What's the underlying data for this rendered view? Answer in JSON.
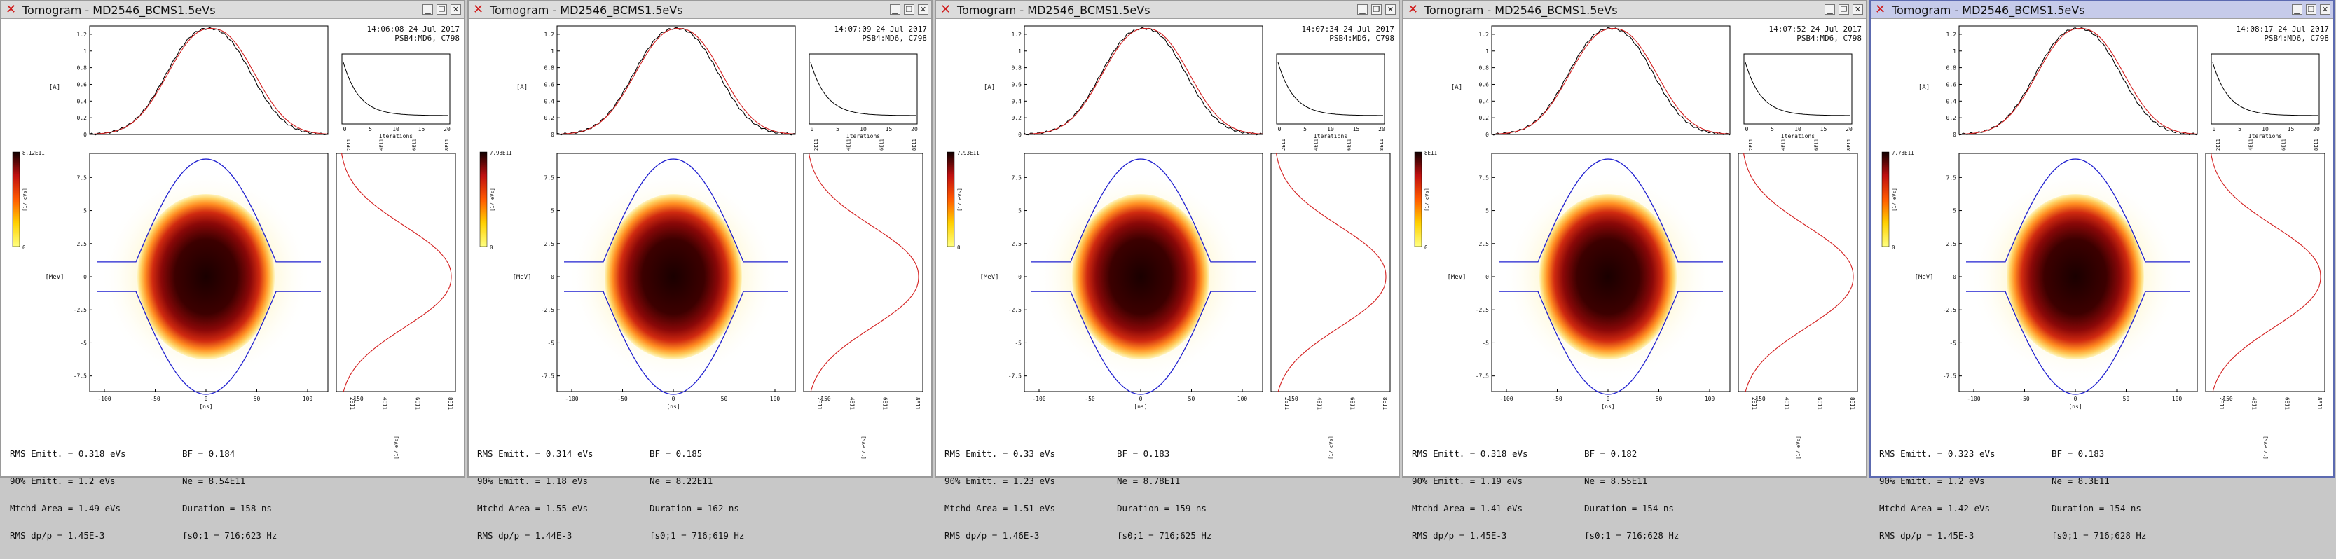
{
  "colors": {
    "measured": "#000000",
    "reconstructed": "#d42020",
    "separatrix": "#2020d0",
    "convergence": "#000000"
  },
  "icons": {
    "close_left": "red-x-close-icon",
    "minimize": "minimize-icon",
    "restore": "restore-icon",
    "close_right": "close-icon"
  },
  "axis_labels": {
    "profile_y": "[A]",
    "convergence_x": "Iterations",
    "phase_y": "[MeV]",
    "phase_x": "[ns]",
    "colorbar_unit": "[1/ eVs]",
    "energy_profile_unit": "[1/ eVs]"
  },
  "ticks": {
    "profile_y": [
      "1.2",
      "1",
      "0.8",
      "0.6",
      "0.4",
      "0.2",
      "0"
    ],
    "convergence_x": [
      "0",
      "5",
      "10",
      "15",
      "20"
    ],
    "phase_y": [
      "7.5",
      "5",
      "2.5",
      "0",
      "-2.5",
      "-5",
      "-7.5"
    ],
    "phase_x": [
      "-100",
      "-50",
      "0",
      "50",
      "100",
      "150"
    ],
    "energy_x_top": [
      "2E11",
      "4E11",
      "6E11",
      "8E11",
      "1E12"
    ]
  },
  "windows": [
    {
      "title": "Tomogram - MD2546_BCMS1.5eVs",
      "time": "14:06:08 24 Jul 2017",
      "user": "PSB4:MD6, C798",
      "colorbar_max": "8.12E11",
      "energy_ticks": [
        "2E11",
        "4E11",
        "6E11",
        "8E11"
      ],
      "stats": {
        "rms_emitt": "RMS Emitt. = 0.318 eVs",
        "emitt90": "90% Emitt. = 1.2 eVs",
        "mtchd_area": "Mtchd Area = 1.49 eVs",
        "rms_dpp": "RMS dp/p = 1.45E-3",
        "bf": "BF = 0.184",
        "ne": "Ne = 8.54E11",
        "duration": "Duration = 158 ns",
        "fs0": "fs0;1 = 716;623 Hz"
      },
      "active": false
    },
    {
      "title": "Tomogram - MD2546_BCMS1.5eVs",
      "time": "14:07:09 24 Jul 2017",
      "user": "PSB4:MD6, C798",
      "colorbar_max": "7.93E11",
      "energy_ticks": [
        "2E11",
        "4E11",
        "6E11",
        "8E11"
      ],
      "stats": {
        "rms_emitt": "RMS Emitt. = 0.314 eVs",
        "emitt90": "90% Emitt. = 1.18 eVs",
        "mtchd_area": "Mtchd Area = 1.55 eVs",
        "rms_dpp": "RMS dp/p = 1.44E-3",
        "bf": "BF = 0.185",
        "ne": "Ne = 8.22E11",
        "duration": "Duration = 162 ns",
        "fs0": "fs0;1 = 716;619 Hz"
      },
      "active": false
    },
    {
      "title": "Tomogram - MD2546_BCMS1.5eVs",
      "time": "14:07:34 24 Jul 2017",
      "user": "PSB4:MD6, C798",
      "colorbar_max": "7.93E11",
      "energy_ticks": [
        "2E11",
        "4E11",
        "6E11",
        "8E11"
      ],
      "stats": {
        "rms_emitt": "RMS Emitt. = 0.33 eVs",
        "emitt90": "90% Emitt. = 1.23 eVs",
        "mtchd_area": "Mtchd Area = 1.51 eVs",
        "rms_dpp": "RMS dp/p = 1.46E-3",
        "bf": "BF = 0.183",
        "ne": "Ne = 8.78E11",
        "duration": "Duration = 159 ns",
        "fs0": "fs0;1 = 716;625 Hz"
      },
      "active": false
    },
    {
      "title": "Tomogram - MD2546_BCMS1.5eVs",
      "time": "14:07:52 24 Jul 2017",
      "user": "PSB4:MD6, C798",
      "colorbar_max": "8E11",
      "energy_ticks": [
        "2E11",
        "4E11",
        "6E11",
        "8E11"
      ],
      "stats": {
        "rms_emitt": "RMS Emitt. = 0.318 eVs",
        "emitt90": "90% Emitt. = 1.19 eVs",
        "mtchd_area": "Mtchd Area = 1.41 eVs",
        "rms_dpp": "RMS dp/p = 1.45E-3",
        "bf": "BF = 0.182",
        "ne": "Ne = 8.55E11",
        "duration": "Duration = 154 ns",
        "fs0": "fs0;1 = 716;628 Hz"
      },
      "active": false
    },
    {
      "title": "Tomogram - MD2546_BCMS1.5eVs",
      "time": "14:08:17 24 Jul 2017",
      "user": "PSB4:MD6, C798",
      "colorbar_max": "7.73E11",
      "energy_ticks": [
        "2E11",
        "4E11",
        "6E11",
        "8E11"
      ],
      "stats": {
        "rms_emitt": "RMS Emitt. = 0.323 eVs",
        "emitt90": "90% Emitt. = 1.2 eVs",
        "mtchd_area": "Mtchd Area = 1.42 eVs",
        "rms_dpp": "RMS dp/p = 1.45E-3",
        "bf": "BF = 0.183",
        "ne": "Ne = 8.3E11",
        "duration": "Duration = 154 ns",
        "fs0": "fs0;1 = 716;628 Hz"
      },
      "active": true
    }
  ]
}
